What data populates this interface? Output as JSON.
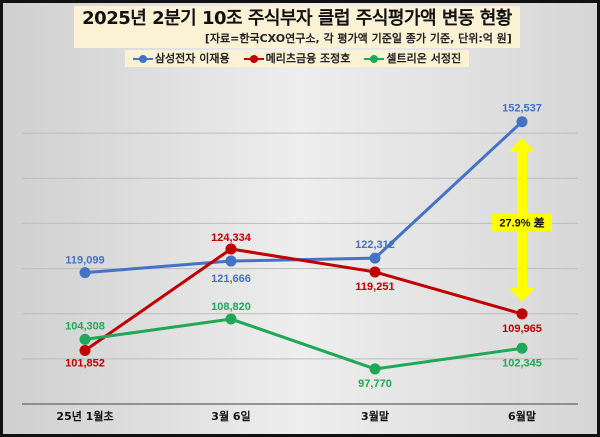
{
  "chart_data": {
    "type": "line",
    "title": "2025년 2분기 10조 주식부자 클럽 주식평가액 변동 현황",
    "subtitle": "[자료=한국CXO연구소, 각 평가액 기준일 종가 기준, 단위:억 원]",
    "categories": [
      "25년 1월초",
      "3월 6일",
      "3월말",
      "6월말"
    ],
    "ylim": [
      90000,
      160000
    ],
    "grid": true,
    "legend_position": "top",
    "series": [
      {
        "name": "삼성전자 이재용",
        "color": "#4472c4",
        "values": [
          119099,
          121666,
          122312,
          152537
        ],
        "labels": [
          "119,099",
          "121,666",
          "122,312",
          "152,537"
        ]
      },
      {
        "name": "메리츠금융 조정호",
        "color": "#c00000",
        "values": [
          101852,
          124334,
          119251,
          109965
        ],
        "labels": [
          "101,852",
          "124,334",
          "119,251",
          "109,965"
        ]
      },
      {
        "name": "셀트리온 서정진",
        "color": "#1fa855",
        "values": [
          104308,
          108820,
          97770,
          102345
        ],
        "labels": [
          "104,308",
          "108,820",
          "97,770",
          "102,345"
        ]
      }
    ],
    "annotation": {
      "text": "27.9% 差",
      "color": "#ffff00"
    }
  }
}
